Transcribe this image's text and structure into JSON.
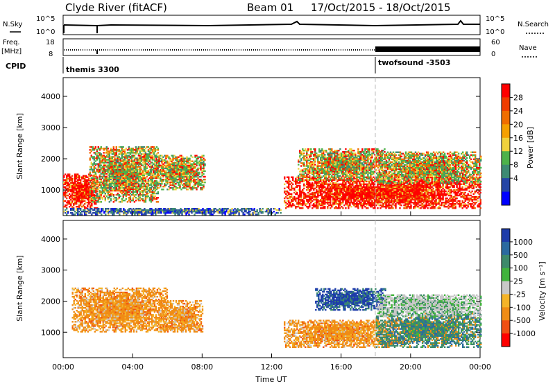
{
  "header": {
    "radar": "Clyde River (fitACF)",
    "beam": "Beam 01",
    "dates": "17/Oct/2015 - 18/Oct/2015"
  },
  "params": {
    "nsky_label": "N.Sky",
    "nsky_ticks": [
      "10^5",
      "10^0"
    ],
    "nsearch_label": "N.Search",
    "nsearch_ticks": [
      "10^5",
      "10^0"
    ],
    "freq_label": "Freq.",
    "freq_unit": "[MHz]",
    "freq_ticks": [
      "18",
      "8"
    ],
    "nave_label": "Nave",
    "nave_ticks": [
      "60",
      "0"
    ],
    "cpid_label": "CPID",
    "cpid_segments": [
      {
        "name": "themis 3300",
        "start_hour": 0
      },
      {
        "name": "twofsound -3503",
        "start_hour": 18
      }
    ]
  },
  "colors": {
    "power_scale": [
      "#0000ff",
      "#2545a5",
      "#3d8a72",
      "#4db24a",
      "#f0d23c",
      "#f5a000",
      "#f06e00",
      "#f03c00",
      "#ff0000"
    ],
    "velocity_scale": [
      "#ff0000",
      "#f05014",
      "#f08c14",
      "#f5b428",
      "#c8c8c8",
      "#41b43c",
      "#3d8a6a",
      "#2b6aa0",
      "#1e3caa"
    ]
  },
  "chart_data": [
    {
      "type": "heatmap",
      "name": "power",
      "ylabel": "Slant Range [km]",
      "x_range": [
        0,
        24
      ],
      "ylim": [
        180,
        4600
      ],
      "yticks": [
        1000,
        2000,
        3000,
        4000
      ],
      "colorbar": {
        "label": "Power [dB]",
        "ticks": [
          "28",
          "24",
          "20",
          "16",
          "12",
          "8",
          "4"
        ]
      },
      "regions": [
        {
          "t0": 0.0,
          "t1": 2.0,
          "r0": 400,
          "r1": 1500,
          "level": "high"
        },
        {
          "t0": 1.5,
          "t1": 5.5,
          "r0": 600,
          "r1": 2400,
          "level": "medium"
        },
        {
          "t0": 5.0,
          "t1": 8.2,
          "r0": 1000,
          "r1": 2100,
          "level": "medium"
        },
        {
          "t0": 12.7,
          "t1": 24.0,
          "r0": 400,
          "r1": 1400,
          "level": "high"
        },
        {
          "t0": 13.5,
          "t1": 18.5,
          "r0": 1300,
          "r1": 2300,
          "level": "medium"
        },
        {
          "t0": 18.0,
          "t1": 24.0,
          "r0": 1200,
          "r1": 2200,
          "level": "medium"
        },
        {
          "t0": 0.0,
          "t1": 12.5,
          "r0": 200,
          "r1": 400,
          "level": "low"
        }
      ]
    },
    {
      "type": "heatmap",
      "name": "velocity",
      "ylabel": "Slant Range [km]",
      "x_range": [
        0,
        24
      ],
      "ylim": [
        180,
        4600
      ],
      "yticks": [
        1000,
        2000,
        3000,
        4000
      ],
      "xticks": [
        "00:00",
        "04:00",
        "08:00",
        "12:00",
        "16:00",
        "20:00",
        "00:00"
      ],
      "xlabel": "Time UT",
      "colorbar": {
        "label": "Velocity [m s⁻¹]",
        "ticks": [
          "1000",
          "500",
          "100",
          "25",
          "-25",
          "-100",
          "-500",
          "-1000"
        ]
      },
      "regions": [
        {
          "t0": 0.5,
          "t1": 6.0,
          "r0": 1000,
          "r1": 2400,
          "level": "orange"
        },
        {
          "t0": 5.5,
          "t1": 8.0,
          "r0": 1000,
          "r1": 2000,
          "level": "orange"
        },
        {
          "t0": 12.7,
          "t1": 19.0,
          "r0": 500,
          "r1": 1400,
          "level": "orange"
        },
        {
          "t0": 14.5,
          "t1": 18.5,
          "r0": 1700,
          "r1": 2400,
          "level": "blue"
        },
        {
          "t0": 18.0,
          "t1": 24.0,
          "r0": 500,
          "r1": 1600,
          "level": "green"
        },
        {
          "t0": 18.0,
          "t1": 24.0,
          "r0": 1500,
          "r1": 2200,
          "level": "grey"
        }
      ]
    }
  ]
}
